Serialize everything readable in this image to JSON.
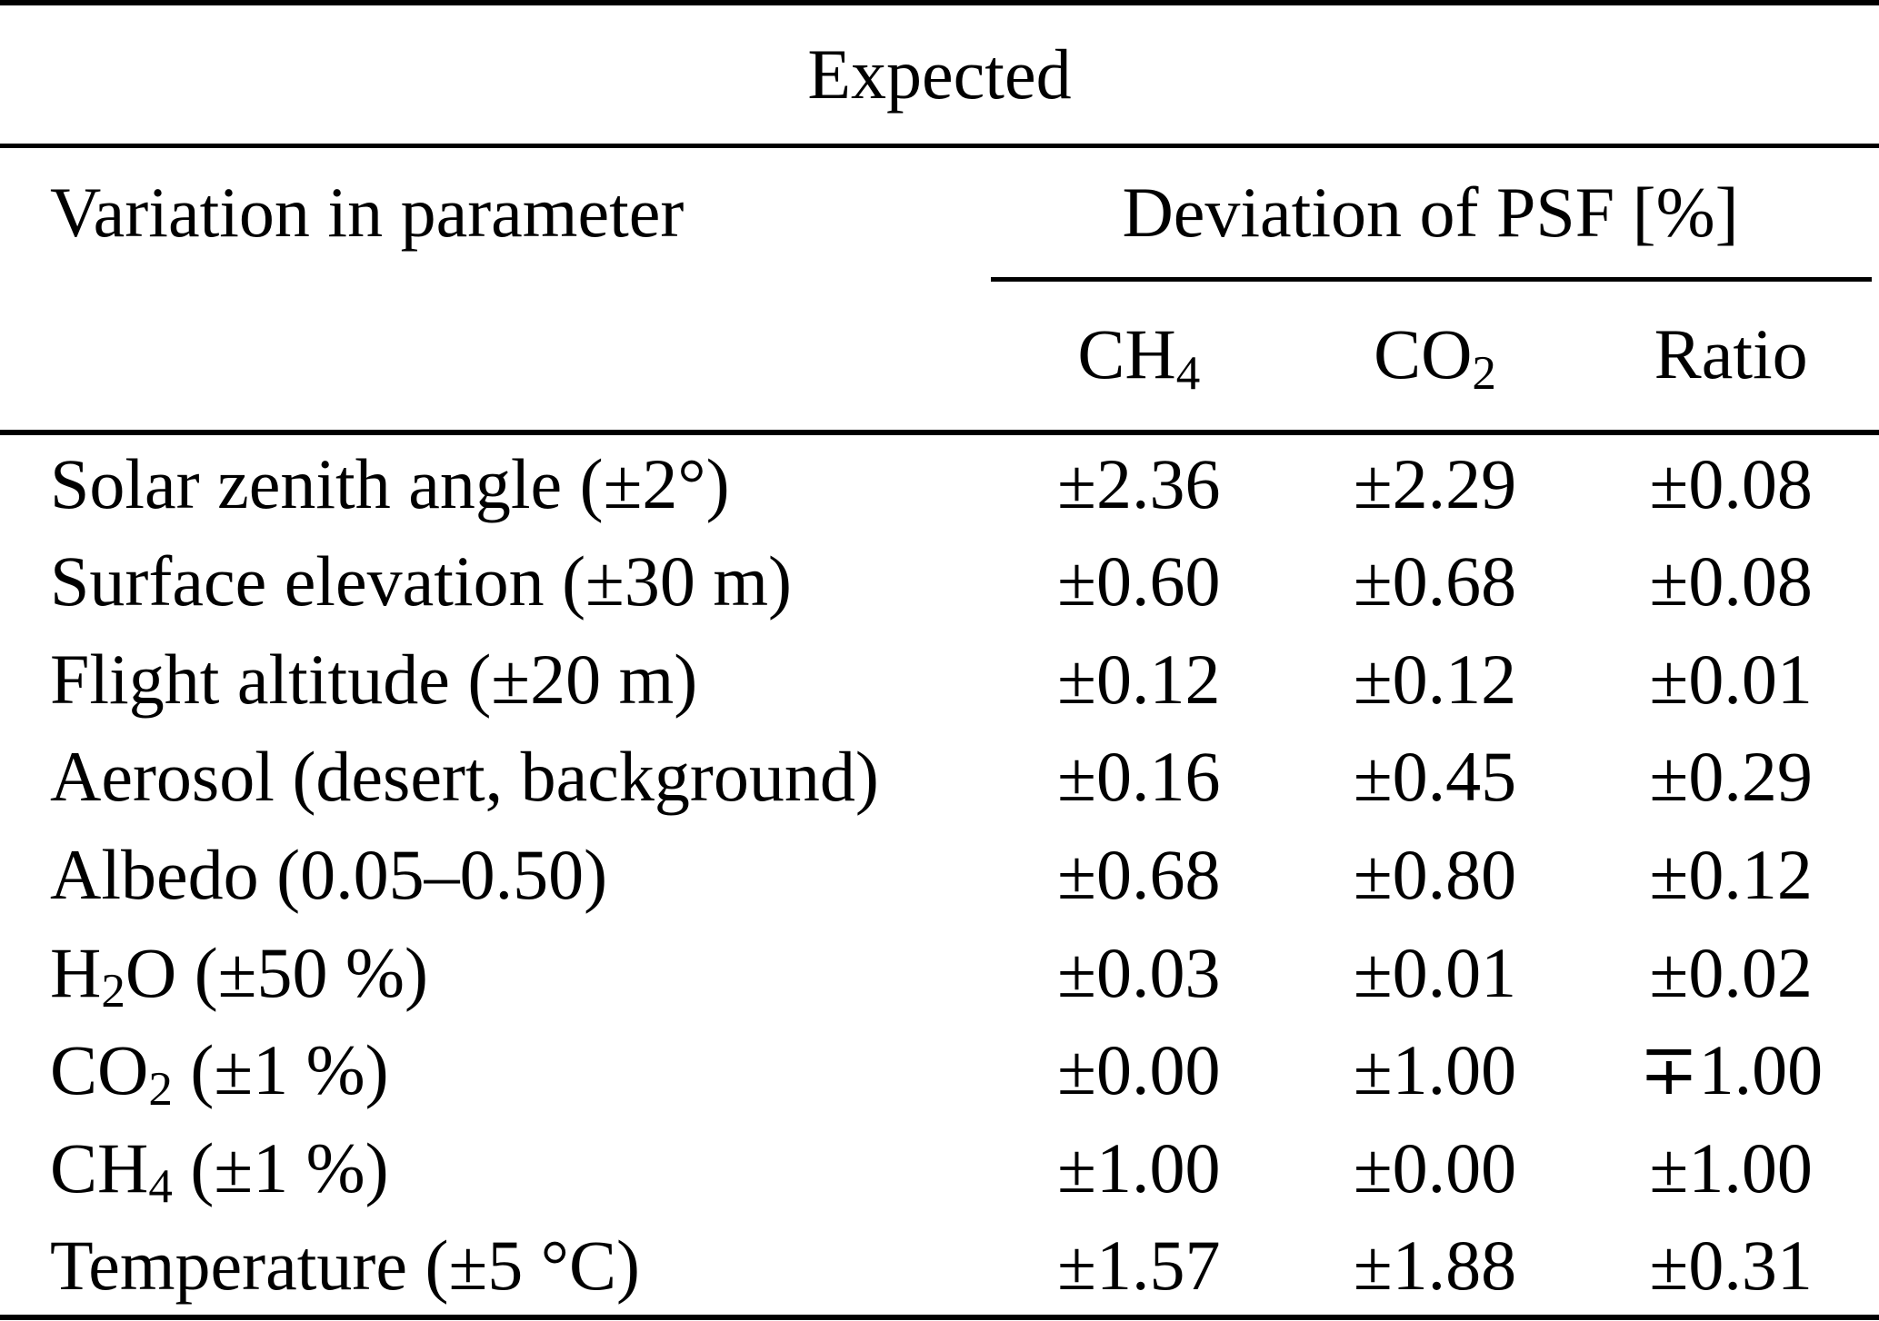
{
  "colors": {
    "background": "#ffffff",
    "text": "#000000",
    "rule": "#000000"
  },
  "table": {
    "top_header": "Expected",
    "col_group_left": "Variation in parameter",
    "col_group_right": "Deviation of PSF [%]",
    "columns": [
      {
        "pre": "CH",
        "sub": "4"
      },
      {
        "pre": "CO",
        "sub": "2"
      },
      {
        "pre": "Ratio",
        "sub": ""
      }
    ],
    "rows": [
      {
        "label_pre": "Solar zenith angle (±2°)",
        "label_sub": "",
        "label_post": "",
        "ch4": "±2.36",
        "co2": "±2.29",
        "ratio": "±0.08"
      },
      {
        "label_pre": "Surface elevation (±30 m)",
        "label_sub": "",
        "label_post": "",
        "ch4": "±0.60",
        "co2": "±0.68",
        "ratio": "±0.08"
      },
      {
        "label_pre": "Flight altitude (±20 m)",
        "label_sub": "",
        "label_post": "",
        "ch4": "±0.12",
        "co2": "±0.12",
        "ratio": "±0.01"
      },
      {
        "label_pre": "Aerosol (desert, background)",
        "label_sub": "",
        "label_post": "",
        "ch4": "±0.16",
        "co2": "±0.45",
        "ratio": "±0.29"
      },
      {
        "label_pre": "Albedo (0.05–0.50)",
        "label_sub": "",
        "label_post": "",
        "ch4": "±0.68",
        "co2": "±0.80",
        "ratio": "±0.12"
      },
      {
        "label_pre": "H",
        "label_sub": "2",
        "label_post": "O (±50 %)",
        "ch4": "±0.03",
        "co2": "±0.01",
        "ratio": "±0.02"
      },
      {
        "label_pre": "CO",
        "label_sub": "2",
        "label_post": " (±1 %)",
        "ch4": "±0.00",
        "co2": "±1.00",
        "ratio": "∓1.00"
      },
      {
        "label_pre": "CH",
        "label_sub": "4",
        "label_post": " (±1 %)",
        "ch4": "±1.00",
        "co2": "±0.00",
        "ratio": "±1.00"
      },
      {
        "label_pre": "Temperature (±5 °C)",
        "label_sub": "",
        "label_post": "",
        "ch4": "±1.57",
        "co2": "±1.88",
        "ratio": "±0.31"
      }
    ]
  }
}
